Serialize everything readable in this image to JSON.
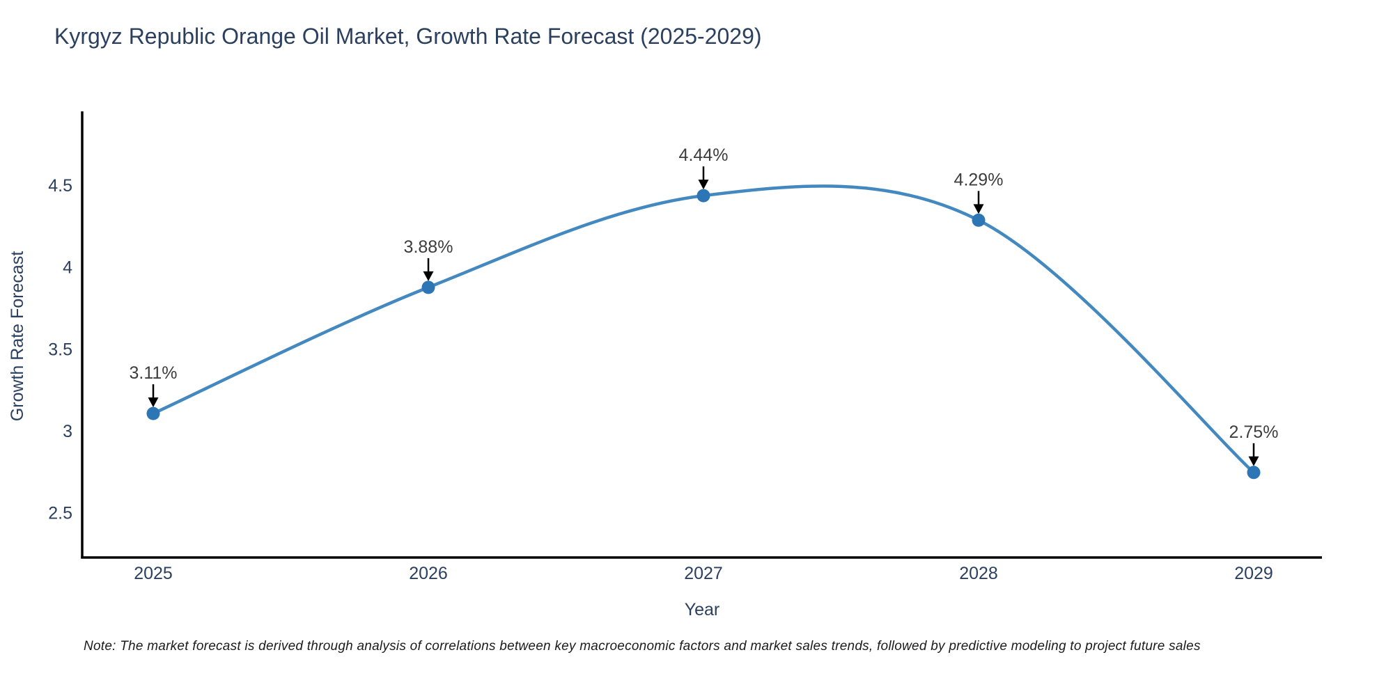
{
  "page": {
    "background_color": "#ffffff"
  },
  "chart_data": {
    "type": "line",
    "line_shape": "spline",
    "title": "Kyrgyz Republic Orange Oil Market, Growth Rate Forecast (2025-2029)",
    "xlabel": "Year",
    "ylabel": "Growth Rate Forecast",
    "categories": [
      "2025",
      "2026",
      "2027",
      "2028",
      "2029"
    ],
    "series": [
      {
        "name": "Growth Rate Forecast",
        "values": [
          3.11,
          3.88,
          4.44,
          4.29,
          2.75
        ]
      }
    ],
    "point_labels": [
      "3.11%",
      "3.88%",
      "4.44%",
      "4.29%",
      "2.75%"
    ],
    "yticks": [
      2.5,
      3,
      3.5,
      4,
      4.5
    ],
    "ylim": [
      2.23,
      4.96
    ],
    "grid": false,
    "legend_position": "none",
    "colors": {
      "line": "#4389c0",
      "marker": "#2d76b6",
      "axis": "#000000",
      "arrow": "#000000",
      "tick_text": "#2b3f5f",
      "annotation_text": "#3d3d3d",
      "title_text": "#2b3f5f"
    }
  },
  "note": {
    "text": "Note: The market forecast is derived through analysis of correlations between key macroeconomic factors and market sales trends, followed by predictive modeling to project future sales"
  }
}
